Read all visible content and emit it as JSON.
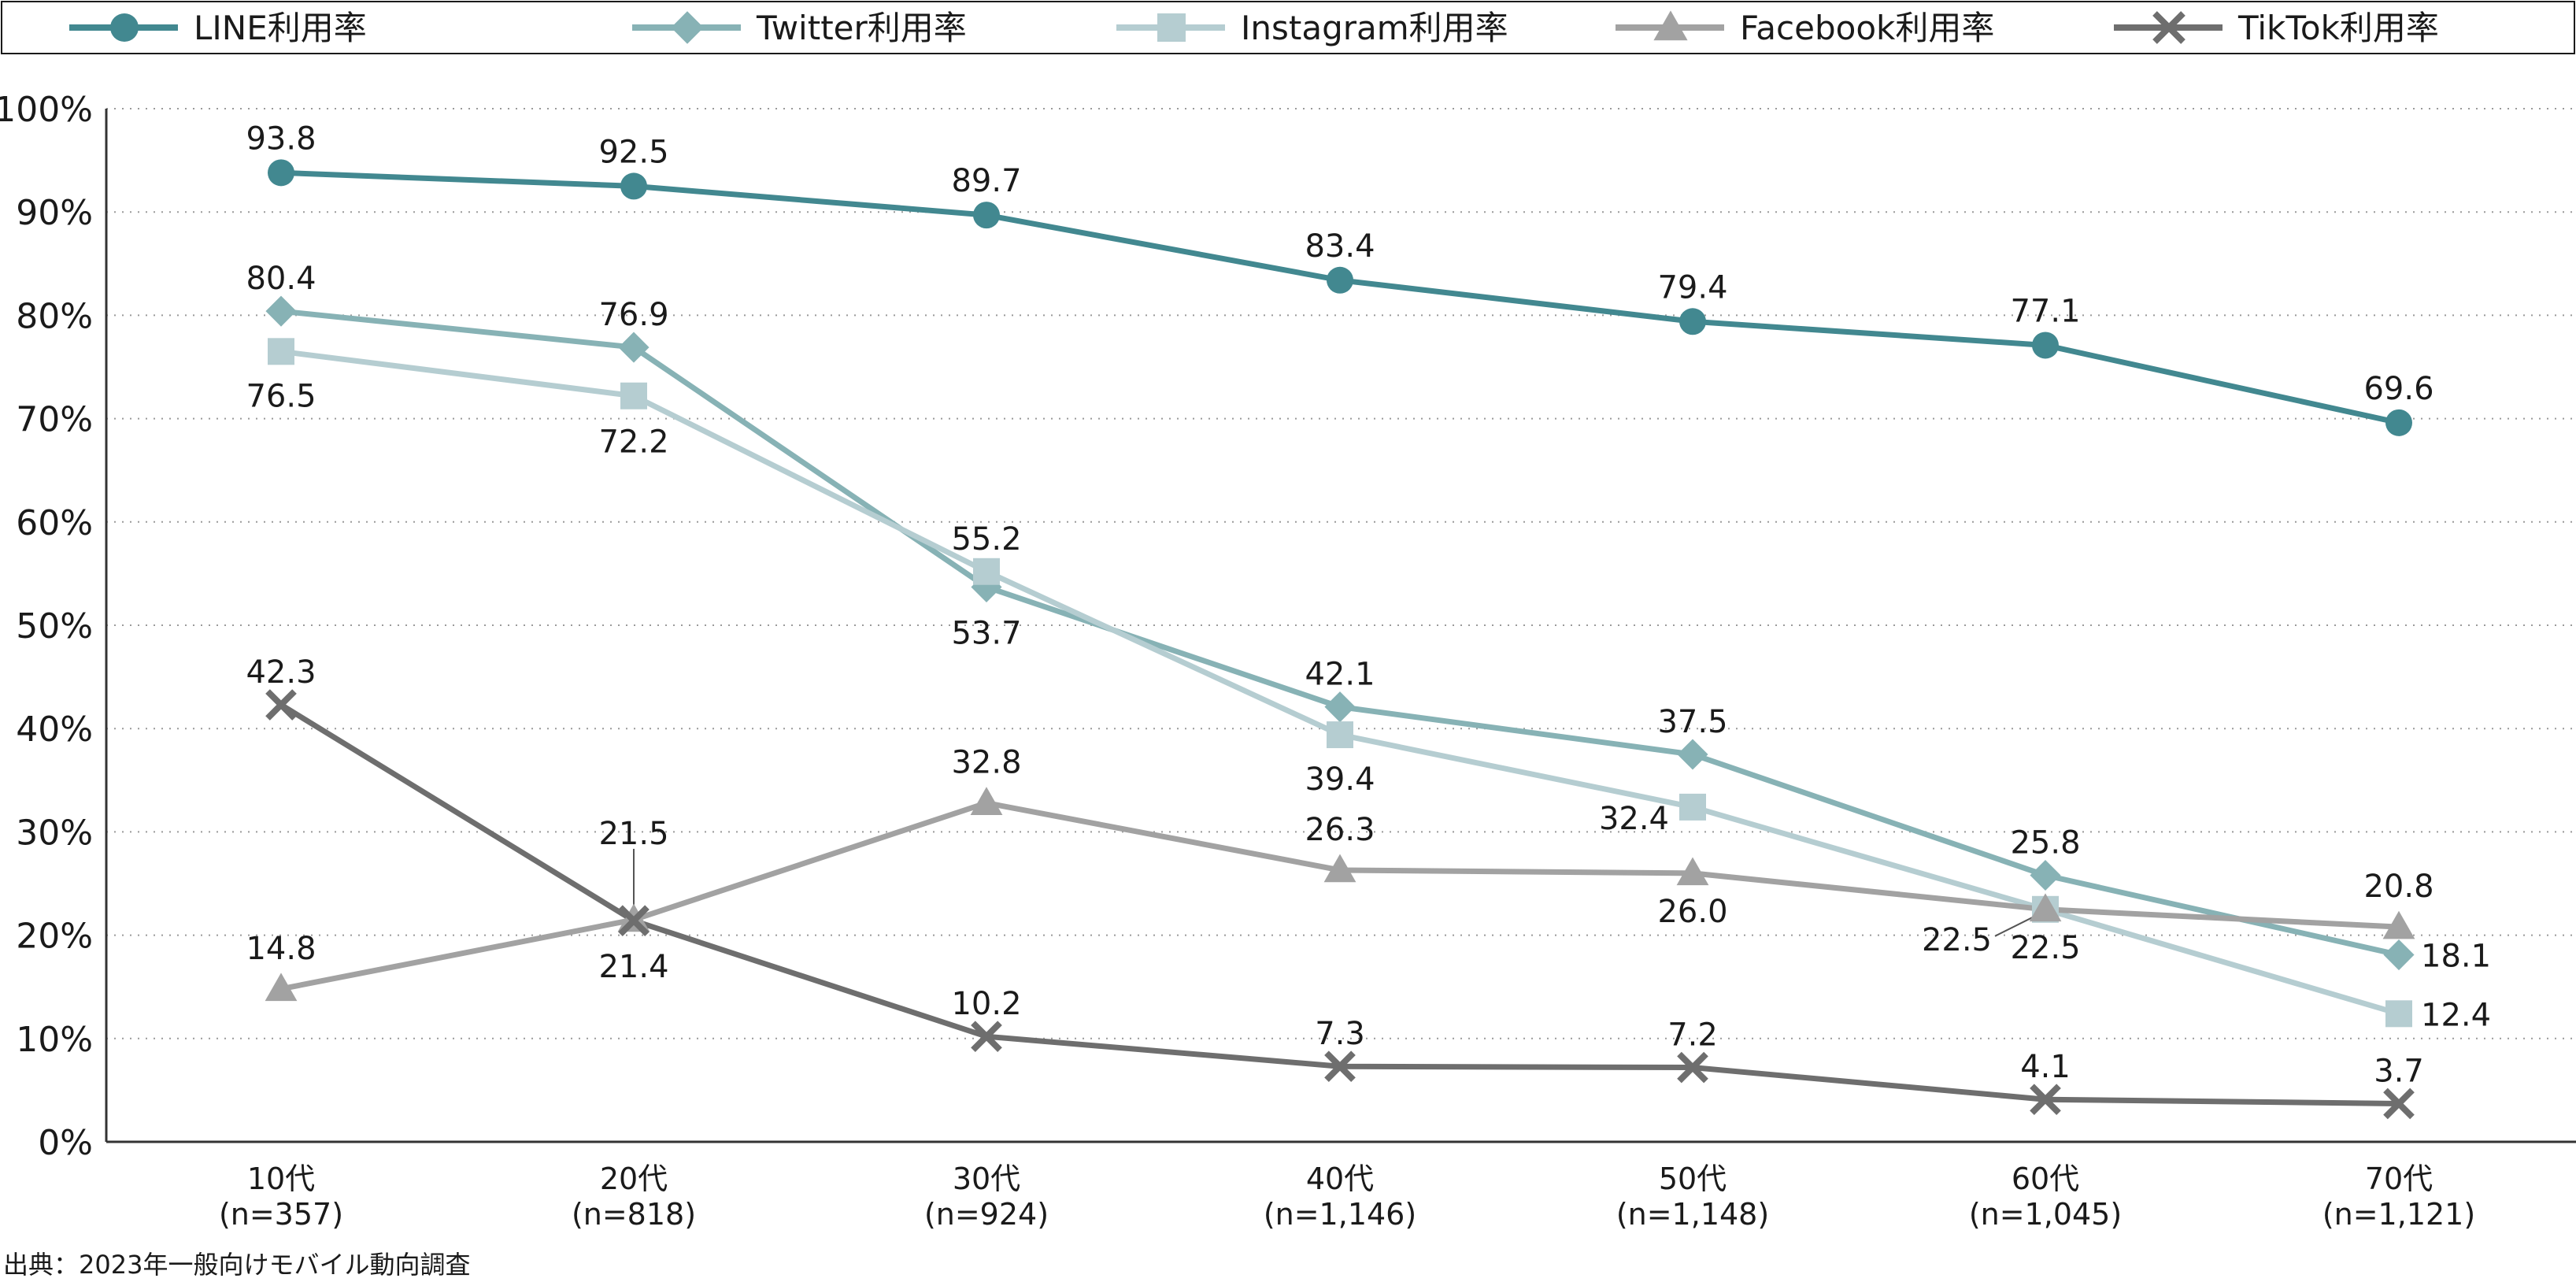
{
  "chart_data": {
    "type": "line",
    "title": "",
    "xlabel": "",
    "ylabel": "",
    "ylim": [
      0,
      100
    ],
    "yticks": [
      0,
      10,
      20,
      30,
      40,
      50,
      60,
      70,
      80,
      90,
      100
    ],
    "ytick_suffix": "%",
    "grid": true,
    "legend_position": "top",
    "categories": [
      "10代",
      "20代",
      "30代",
      "40代",
      "50代",
      "60代",
      "70代"
    ],
    "category_samples": [
      "(n=357)",
      "(n=818)",
      "(n=924)",
      "(n=1,146)",
      "(n=1,148)",
      "(n=1,045)",
      "(n=1,121)"
    ],
    "series": [
      {
        "name": "LINE利用率",
        "color": "#428890",
        "marker": "circle",
        "values": [
          93.8,
          92.5,
          89.7,
          83.4,
          79.4,
          77.1,
          69.6
        ],
        "labels": [
          "93.8",
          "92.5",
          "89.7",
          "83.4",
          "79.4",
          "77.1",
          "69.6"
        ]
      },
      {
        "name": "Twitter利用率",
        "color": "#87b2b5",
        "marker": "diamond",
        "values": [
          80.4,
          76.9,
          53.7,
          42.1,
          37.5,
          25.8,
          18.1
        ],
        "labels": [
          "80.4",
          "76.9",
          "53.7",
          "42.1",
          "37.5",
          "25.8",
          "18.1"
        ]
      },
      {
        "name": "Instagram利用率",
        "color": "#b5cdd1",
        "marker": "square",
        "values": [
          76.5,
          72.2,
          55.2,
          39.4,
          32.4,
          22.5,
          12.4
        ],
        "labels": [
          "76.5",
          "72.2",
          "55.2",
          "39.4",
          "32.4",
          "22.5",
          "12.4"
        ]
      },
      {
        "name": "Facebook利用率",
        "color": "#a2a2a2",
        "marker": "triangle",
        "values": [
          14.8,
          21.5,
          32.8,
          26.3,
          26.0,
          22.5,
          20.8
        ],
        "labels": [
          "14.8",
          "21.5",
          "32.8",
          "26.3",
          "26.0",
          "22.5",
          "20.8"
        ]
      },
      {
        "name": "TikTok利用率",
        "color": "#6e6e6e",
        "marker": "x",
        "values": [
          42.3,
          21.4,
          10.2,
          7.3,
          7.2,
          4.1,
          3.7
        ],
        "labels": [
          "42.3",
          "21.4",
          "10.2",
          "7.3",
          "7.2",
          "4.1",
          "3.7"
        ]
      }
    ]
  },
  "source": "出典：2023年一般向けモバイル動向調査"
}
